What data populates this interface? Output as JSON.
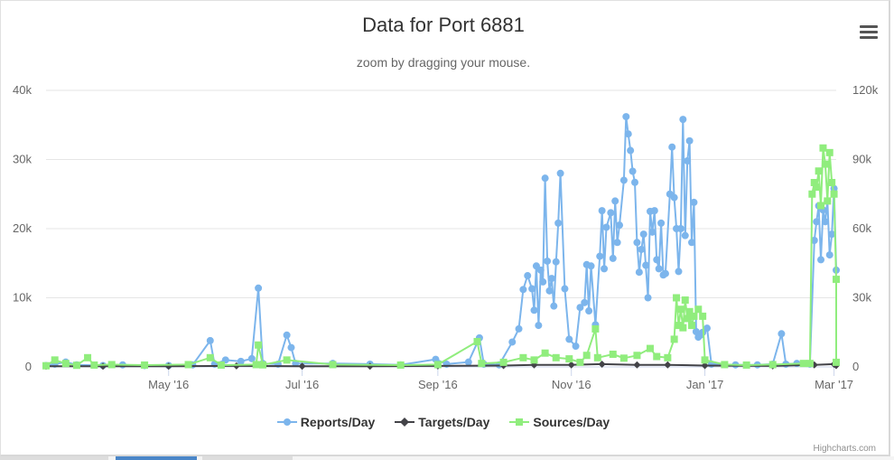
{
  "header": {
    "title": "Data for Port 6881",
    "subtitle": "zoom by dragging your mouse."
  },
  "menu": {
    "icon": "hamburger-menu-icon"
  },
  "credit": "Highcharts.com",
  "legend": [
    {
      "label": "Reports/Day",
      "color": "#7cb5ec",
      "marker": "circle"
    },
    {
      "label": "Targets/Day",
      "color": "#434348",
      "marker": "diamond"
    },
    {
      "label": "Sources/Day",
      "color": "#90ed7d",
      "marker": "square"
    }
  ],
  "chart_data": {
    "type": "line",
    "title": "Data for Port 6881",
    "subtitle": "zoom by dragging your mouse.",
    "x_range": [
      "2016-03-06",
      "2017-03-02"
    ],
    "x_ticks": [
      "May '16",
      "Jul '16",
      "Sep '16",
      "Nov '16",
      "Jan '17",
      "Mar '17"
    ],
    "y_left": {
      "ticks": [
        "0",
        "10k",
        "20k",
        "30k",
        "40k"
      ],
      "range": [
        0,
        40000
      ]
    },
    "y_right": {
      "ticks": [
        "0",
        "30k",
        "60k",
        "90k",
        "120k"
      ],
      "range": [
        0,
        120000
      ]
    },
    "grid": true,
    "legend_position": "bottom-center",
    "series": [
      {
        "name": "Reports/Day",
        "axis": "left",
        "points": [
          [
            "2016-03-06",
            200
          ],
          [
            "2016-03-10",
            400
          ],
          [
            "2016-03-15",
            700
          ],
          [
            "2016-03-20",
            300
          ],
          [
            "2016-04-01",
            200
          ],
          [
            "2016-04-10",
            300
          ],
          [
            "2016-04-20",
            200
          ],
          [
            "2016-05-01",
            200
          ],
          [
            "2016-05-12",
            300
          ],
          [
            "2016-05-20",
            3800
          ],
          [
            "2016-05-22",
            400
          ],
          [
            "2016-05-27",
            1000
          ],
          [
            "2016-06-03",
            800
          ],
          [
            "2016-06-08",
            1200
          ],
          [
            "2016-06-11",
            11400
          ],
          [
            "2016-06-13",
            500
          ],
          [
            "2016-06-20",
            400
          ],
          [
            "2016-06-24",
            4600
          ],
          [
            "2016-06-26",
            2800
          ],
          [
            "2016-06-28",
            500
          ],
          [
            "2016-07-15",
            500
          ],
          [
            "2016-08-01",
            400
          ],
          [
            "2016-08-15",
            300
          ],
          [
            "2016-08-31",
            1100
          ],
          [
            "2016-09-05",
            400
          ],
          [
            "2016-09-15",
            700
          ],
          [
            "2016-09-20",
            4200
          ],
          [
            "2016-09-22",
            400
          ],
          [
            "2016-09-29",
            300
          ],
          [
            "2016-10-05",
            3600
          ],
          [
            "2016-10-08",
            5500
          ],
          [
            "2016-10-10",
            11200
          ],
          [
            "2016-10-12",
            13200
          ],
          [
            "2016-10-14",
            11300
          ],
          [
            "2016-10-15",
            8200
          ],
          [
            "2016-10-16",
            14600
          ],
          [
            "2016-10-17",
            6000
          ],
          [
            "2016-10-18",
            14000
          ],
          [
            "2016-10-19",
            12300
          ],
          [
            "2016-10-20",
            27300
          ],
          [
            "2016-10-21",
            15300
          ],
          [
            "2016-10-22",
            11000
          ],
          [
            "2016-10-23",
            12800
          ],
          [
            "2016-10-24",
            8800
          ],
          [
            "2016-10-25",
            15200
          ],
          [
            "2016-10-26",
            20800
          ],
          [
            "2016-10-27",
            28000
          ],
          [
            "2016-10-29",
            11300
          ],
          [
            "2016-10-31",
            4000
          ],
          [
            "2016-11-03",
            3000
          ],
          [
            "2016-11-05",
            8600
          ],
          [
            "2016-11-07",
            9300
          ],
          [
            "2016-11-08",
            14800
          ],
          [
            "2016-11-09",
            8100
          ],
          [
            "2016-11-10",
            14600
          ],
          [
            "2016-11-12",
            6100
          ],
          [
            "2016-11-14",
            16000
          ],
          [
            "2016-11-15",
            22600
          ],
          [
            "2016-11-16",
            14200
          ],
          [
            "2016-11-17",
            20200
          ],
          [
            "2016-11-19",
            22300
          ],
          [
            "2016-11-20",
            15700
          ],
          [
            "2016-11-21",
            24000
          ],
          [
            "2016-11-22",
            18000
          ],
          [
            "2016-11-23",
            20500
          ],
          [
            "2016-11-25",
            27000
          ],
          [
            "2016-11-26",
            36200
          ],
          [
            "2016-11-27",
            33700
          ],
          [
            "2016-11-28",
            31300
          ],
          [
            "2016-11-29",
            28300
          ],
          [
            "2016-11-30",
            26700
          ],
          [
            "2016-12-01",
            18000
          ],
          [
            "2016-12-02",
            13700
          ],
          [
            "2016-12-03",
            17000
          ],
          [
            "2016-12-04",
            19200
          ],
          [
            "2016-12-05",
            14700
          ],
          [
            "2016-12-06",
            10000
          ],
          [
            "2016-12-07",
            22500
          ],
          [
            "2016-12-08",
            19500
          ],
          [
            "2016-12-09",
            22600
          ],
          [
            "2016-12-10",
            15500
          ],
          [
            "2016-12-11",
            14200
          ],
          [
            "2016-12-12",
            20800
          ],
          [
            "2016-12-13",
            13300
          ],
          [
            "2016-12-14",
            13500
          ],
          [
            "2016-12-16",
            25000
          ],
          [
            "2016-12-17",
            31800
          ],
          [
            "2016-12-18",
            24500
          ],
          [
            "2016-12-19",
            20000
          ],
          [
            "2016-12-20",
            13800
          ],
          [
            "2016-12-21",
            20000
          ],
          [
            "2016-12-22",
            35800
          ],
          [
            "2016-12-23",
            19000
          ],
          [
            "2016-12-24",
            29800
          ],
          [
            "2016-12-25",
            32700
          ],
          [
            "2016-12-26",
            18000
          ],
          [
            "2016-12-27",
            23800
          ],
          [
            "2016-12-28",
            5100
          ],
          [
            "2016-12-29",
            4300
          ],
          [
            "2016-12-30",
            4600
          ],
          [
            "2016-12-31",
            5000
          ],
          [
            "2017-01-02",
            5600
          ],
          [
            "2017-01-04",
            400
          ],
          [
            "2017-01-15",
            300
          ],
          [
            "2017-01-25",
            300
          ],
          [
            "2017-02-01",
            400
          ],
          [
            "2017-02-05",
            4800
          ],
          [
            "2017-02-07",
            400
          ],
          [
            "2017-02-12",
            500
          ],
          [
            "2017-02-18",
            400
          ],
          [
            "2017-02-20",
            18300
          ],
          [
            "2017-02-21",
            21000
          ],
          [
            "2017-02-22",
            23300
          ],
          [
            "2017-02-23",
            15500
          ],
          [
            "2017-02-24",
            22700
          ],
          [
            "2017-02-25",
            21000
          ],
          [
            "2017-02-26",
            24000
          ],
          [
            "2017-02-27",
            16200
          ],
          [
            "2017-02-28",
            19200
          ],
          [
            "2017-03-01",
            25800
          ],
          [
            "2017-03-02",
            14000
          ]
        ]
      },
      {
        "name": "Targets/Day",
        "axis": "left",
        "points": [
          [
            "2016-03-06",
            100
          ],
          [
            "2016-04-01",
            100
          ],
          [
            "2016-05-01",
            100
          ],
          [
            "2016-06-01",
            150
          ],
          [
            "2016-07-01",
            100
          ],
          [
            "2016-08-01",
            100
          ],
          [
            "2016-09-01",
            150
          ],
          [
            "2016-10-01",
            200
          ],
          [
            "2016-10-15",
            300
          ],
          [
            "2016-11-01",
            300
          ],
          [
            "2016-11-15",
            400
          ],
          [
            "2016-12-01",
            300
          ],
          [
            "2016-12-15",
            300
          ],
          [
            "2017-01-01",
            200
          ],
          [
            "2017-02-01",
            150
          ],
          [
            "2017-02-20",
            300
          ],
          [
            "2017-03-01",
            400
          ],
          [
            "2017-03-02",
            200
          ]
        ]
      },
      {
        "name": "Sources/Day",
        "axis": "right",
        "points": [
          [
            "2016-03-06",
            500
          ],
          [
            "2016-03-10",
            3000
          ],
          [
            "2016-03-15",
            1500
          ],
          [
            "2016-03-20",
            700
          ],
          [
            "2016-03-25",
            4000
          ],
          [
            "2016-03-28",
            800
          ],
          [
            "2016-04-05",
            1000
          ],
          [
            "2016-04-20",
            800
          ],
          [
            "2016-05-10",
            1000
          ],
          [
            "2016-05-20",
            4000
          ],
          [
            "2016-05-25",
            800
          ],
          [
            "2016-06-10",
            1000
          ],
          [
            "2016-06-11",
            9500
          ],
          [
            "2016-06-13",
            900
          ],
          [
            "2016-06-24",
            3000
          ],
          [
            "2016-07-15",
            1000
          ],
          [
            "2016-08-15",
            800
          ],
          [
            "2016-09-01",
            1000
          ],
          [
            "2016-09-19",
            11000
          ],
          [
            "2016-09-21",
            1500
          ],
          [
            "2016-10-01",
            2000
          ],
          [
            "2016-10-10",
            4000
          ],
          [
            "2016-10-15",
            3000
          ],
          [
            "2016-10-20",
            6000
          ],
          [
            "2016-10-25",
            4000
          ],
          [
            "2016-10-31",
            3500
          ],
          [
            "2016-11-05",
            2000
          ],
          [
            "2016-11-08",
            5000
          ],
          [
            "2016-11-12",
            16500
          ],
          [
            "2016-11-13",
            4000
          ],
          [
            "2016-11-20",
            5500
          ],
          [
            "2016-11-25",
            3800
          ],
          [
            "2016-12-01",
            5000
          ],
          [
            "2016-12-07",
            8000
          ],
          [
            "2016-12-10",
            4500
          ],
          [
            "2016-12-15",
            4000
          ],
          [
            "2016-12-18",
            12000
          ],
          [
            "2016-12-19",
            30000
          ],
          [
            "2016-12-20",
            18000
          ],
          [
            "2016-12-21",
            25000
          ],
          [
            "2016-12-22",
            17000
          ],
          [
            "2016-12-23",
            29000
          ],
          [
            "2016-12-24",
            21000
          ],
          [
            "2016-12-25",
            24000
          ],
          [
            "2016-12-26",
            18000
          ],
          [
            "2016-12-27",
            22000
          ],
          [
            "2016-12-29",
            25000
          ],
          [
            "2016-12-31",
            22000
          ],
          [
            "2017-01-01",
            3000
          ],
          [
            "2017-01-10",
            1000
          ],
          [
            "2017-01-20",
            800
          ],
          [
            "2017-02-01",
            1000
          ],
          [
            "2017-02-15",
            1500
          ],
          [
            "2017-02-18",
            1500
          ],
          [
            "2017-02-19",
            75000
          ],
          [
            "2017-02-20",
            80000
          ],
          [
            "2017-02-21",
            78000
          ],
          [
            "2017-02-22",
            85000
          ],
          [
            "2017-02-23",
            70000
          ],
          [
            "2017-02-24",
            95000
          ],
          [
            "2017-02-25",
            88000
          ],
          [
            "2017-02-26",
            72000
          ],
          [
            "2017-02-27",
            93000
          ],
          [
            "2017-02-28",
            80000
          ],
          [
            "2017-03-01",
            75000
          ],
          [
            "2017-03-02",
            38000
          ],
          [
            "2017-03-02",
            2000
          ]
        ]
      }
    ]
  }
}
